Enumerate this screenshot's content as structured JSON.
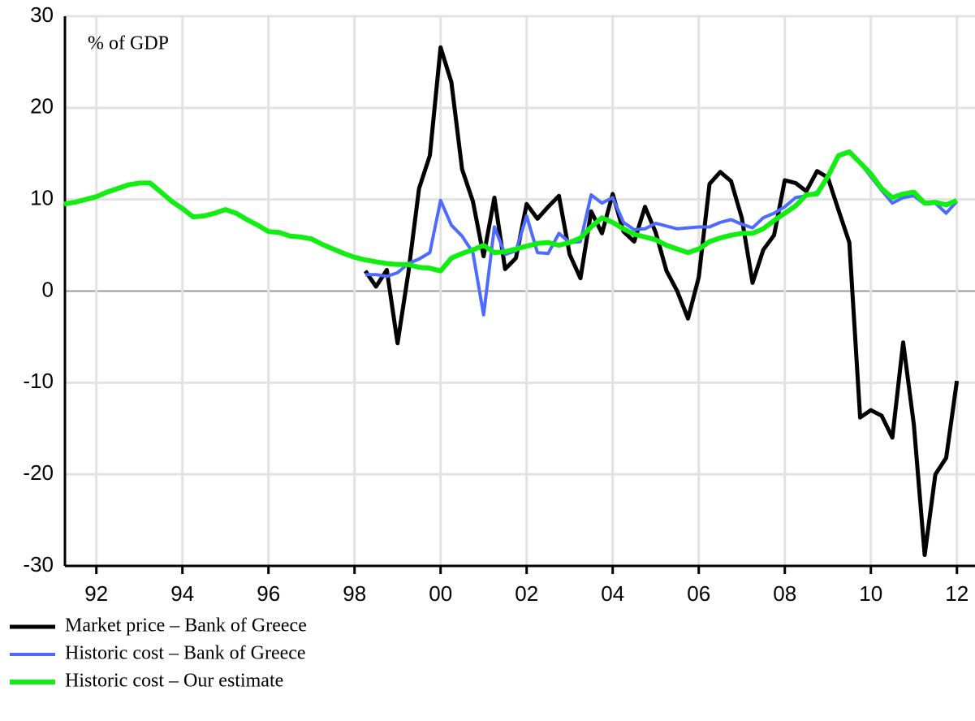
{
  "chart_data": {
    "type": "line",
    "annotation": "% of GDP",
    "x": [
      1991.75,
      1992,
      1992.25,
      1992.5,
      1992.75,
      1993,
      1993.25,
      1993.5,
      1993.75,
      1994,
      1994.25,
      1994.5,
      1994.75,
      1995,
      1995.25,
      1995.5,
      1995.75,
      1996,
      1996.25,
      1996.5,
      1996.75,
      1997,
      1997.25,
      1997.5,
      1997.75,
      1998,
      1998.25,
      1998.5,
      1998.75,
      1999,
      1999.25,
      1999.5,
      1999.75,
      2000,
      2000.25,
      2000.5,
      2000.75,
      2001,
      2001.25,
      2001.5,
      2001.75,
      2002,
      2002.25,
      2002.5,
      2002.75,
      2003,
      2003.25,
      2003.5,
      2003.75,
      2004,
      2004.25,
      2004.5,
      2004.75,
      2005,
      2005.25,
      2005.5,
      2005.75,
      2006,
      2006.25,
      2006.5,
      2006.75,
      2007,
      2007.25,
      2007.5,
      2007.75,
      2008,
      2008.25,
      2008.5,
      2008.75,
      2009,
      2009.25,
      2009.5,
      2009.75,
      2010,
      2010.25,
      2010.5,
      2010.75,
      2011,
      2011.25,
      2011.5,
      2011.75,
      2012,
      2012.25,
      2012.5
    ],
    "series": [
      {
        "name": "Market price – Bank of Greece",
        "color": "#000000",
        "values": [
          null,
          null,
          null,
          null,
          null,
          null,
          null,
          null,
          null,
          null,
          null,
          null,
          null,
          null,
          null,
          null,
          null,
          null,
          null,
          null,
          null,
          null,
          null,
          null,
          null,
          null,
          null,
          null,
          2.2,
          0.5,
          2.3,
          -5.7,
          2.0,
          11.2,
          14.8,
          26.6,
          22.8,
          13.3,
          9.8,
          3.8,
          10.2,
          2.4,
          3.6,
          9.5,
          7.9,
          9.2,
          10.4,
          4.0,
          1.4,
          8.7,
          6.3,
          10.6,
          6.5,
          5.4,
          9.2,
          6.4,
          2.2,
          0,
          -3.0,
          1.5,
          11.7,
          13.0,
          12.0,
          8.0,
          0.9,
          4.5,
          6.1,
          12.1,
          11.8,
          10.9,
          13.1,
          12.4,
          8.8,
          5.3,
          -13.8,
          -13.0,
          -13.6,
          -16.0,
          -5.6,
          -14.6,
          -28.8,
          -20.0,
          -18.2,
          -9.8
        ]
      },
      {
        "name": "Historic cost – Bank of Greece",
        "color": "#4d6bff",
        "values": [
          null,
          null,
          null,
          null,
          null,
          null,
          null,
          null,
          null,
          null,
          null,
          null,
          null,
          null,
          null,
          null,
          null,
          null,
          null,
          null,
          null,
          null,
          null,
          null,
          null,
          null,
          null,
          null,
          1.8,
          1.8,
          1.6,
          2.0,
          3.0,
          3.5,
          4.2,
          9.9,
          7.2,
          6.0,
          4.2,
          -2.6,
          7.0,
          4.0,
          4.4,
          8.2,
          4.2,
          4.1,
          6.3,
          5.3,
          5.4,
          10.5,
          9.6,
          10.2,
          7.5,
          6.7,
          6.8,
          7.4,
          7.1,
          6.8,
          6.9,
          7.0,
          7.0,
          7.5,
          7.8,
          7.3,
          6.9,
          8.0,
          8.5,
          9.2,
          10.2,
          10.4,
          10.8,
          12.6,
          14.7,
          15.1,
          14.0,
          12.5,
          11.0,
          9.6,
          10.2,
          10.4,
          9.5,
          9.6,
          8.5,
          9.8
        ]
      },
      {
        "name": "Historic cost – Our estimate",
        "color": "#11ee11",
        "values": [
          9.5,
          9.7,
          10.0,
          10.3,
          10.8,
          11.2,
          11.6,
          11.8,
          11.8,
          10.8,
          9.8,
          9.0,
          8.1,
          8.2,
          8.5,
          8.9,
          8.5,
          7.8,
          7.2,
          6.5,
          6.4,
          6.0,
          5.9,
          5.7,
          5.1,
          4.6,
          4.1,
          3.7,
          3.4,
          3.2,
          3.0,
          2.9,
          2.9,
          2.6,
          2.5,
          2.2,
          3.6,
          4.1,
          4.5,
          5.0,
          4.2,
          4.3,
          4.6,
          4.9,
          5.2,
          5.3,
          5.0,
          5.3,
          5.8,
          7.0,
          8.0,
          7.5,
          6.8,
          6.2,
          5.9,
          5.6,
          5.0,
          4.6,
          4.2,
          4.6,
          5.4,
          5.8,
          6.1,
          6.3,
          6.3,
          6.8,
          7.7,
          8.5,
          9.3,
          10.5,
          10.6,
          12.5,
          14.8,
          15.2,
          14.0,
          12.8,
          11.2,
          10.2,
          10.6,
          10.8,
          9.6,
          9.7,
          9.4,
          9.9
        ]
      }
    ],
    "xlim": [
      1991.77,
      2012.92
    ],
    "xticks": [
      {
        "value": 1992.5,
        "label": "92"
      },
      {
        "value": 1994.5,
        "label": "94"
      },
      {
        "value": 1996.5,
        "label": "96"
      },
      {
        "value": 1998.5,
        "label": "98"
      },
      {
        "value": 2000.5,
        "label": "00"
      },
      {
        "value": 2002.5,
        "label": "02"
      },
      {
        "value": 2004.5,
        "label": "04"
      },
      {
        "value": 2006.5,
        "label": "06"
      },
      {
        "value": 2008.5,
        "label": "08"
      },
      {
        "value": 2010.5,
        "label": "10"
      },
      {
        "value": 2012.5,
        "label": "12"
      }
    ],
    "ylim": [
      -30,
      30
    ],
    "yticks": [
      -30,
      -20,
      -10,
      0,
      10,
      20,
      30
    ],
    "grid": true,
    "legend": "below"
  }
}
